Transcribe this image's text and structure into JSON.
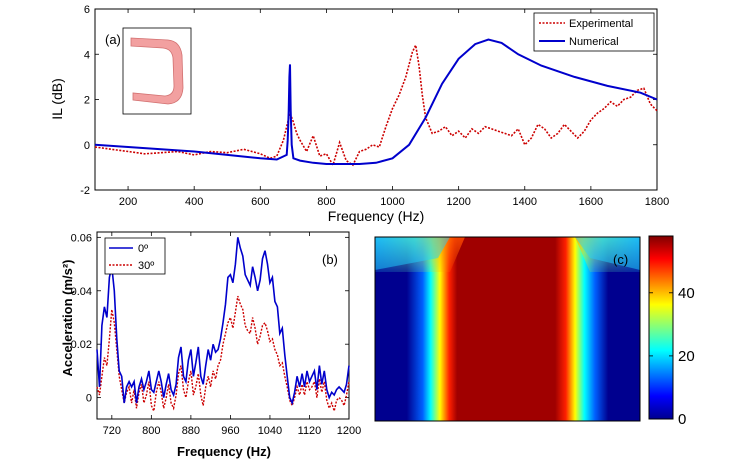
{
  "colors": {
    "experimental": "#cc0000",
    "numerical": "#0000cc",
    "deg0": "#0000cc",
    "deg30": "#cc0000"
  },
  "chart_data": [
    {
      "type": "line",
      "panel_label": "(a)",
      "xlabel": "Frequency (Hz)",
      "ylabel": "IL (dB)",
      "xlim": [
        100,
        1800
      ],
      "ylim": [
        -2,
        6
      ],
      "xticks": [
        "200",
        "400",
        "600",
        "800",
        "1000",
        "1200",
        "1400",
        "1600",
        "1800"
      ],
      "yticks": [
        "-2",
        "0",
        "2",
        "4",
        "6"
      ],
      "legend_position": "top-right",
      "series": [
        {
          "name": "Experimental",
          "style": "dotted",
          "x": [
            100,
            150,
            200,
            250,
            300,
            350,
            400,
            450,
            500,
            550,
            600,
            630,
            650,
            670,
            680,
            690,
            700,
            710,
            720,
            740,
            760,
            780,
            800,
            820,
            840,
            860,
            880,
            900,
            920,
            940,
            960,
            980,
            1000,
            1020,
            1040,
            1060,
            1070,
            1080,
            1090,
            1100,
            1120,
            1140,
            1160,
            1180,
            1200,
            1220,
            1240,
            1260,
            1280,
            1300,
            1320,
            1340,
            1360,
            1380,
            1400,
            1420,
            1440,
            1460,
            1480,
            1500,
            1520,
            1540,
            1560,
            1580,
            1600,
            1620,
            1640,
            1660,
            1680,
            1700,
            1720,
            1740,
            1760,
            1780,
            1800
          ],
          "y": [
            -0.1,
            -0.2,
            -0.3,
            -0.4,
            -0.35,
            -0.3,
            -0.45,
            -0.3,
            -0.35,
            -0.2,
            -0.4,
            -0.6,
            -0.5,
            0.2,
            0.8,
            1.4,
            1.0,
            0.5,
            0.2,
            -0.3,
            0.4,
            -0.5,
            -0.4,
            -0.9,
            0.1,
            -0.7,
            -0.9,
            -0.3,
            -0.2,
            0.0,
            -0.1,
            0.8,
            1.6,
            2.2,
            3.0,
            4.1,
            4.4,
            3.5,
            2.2,
            1.2,
            0.5,
            0.6,
            0.8,
            0.4,
            0.6,
            0.3,
            0.7,
            0.5,
            0.8,
            0.7,
            0.6,
            0.5,
            0.4,
            0.7,
            0.0,
            0.3,
            0.9,
            0.7,
            0.3,
            0.5,
            0.9,
            0.6,
            0.3,
            0.6,
            1.1,
            1.4,
            1.6,
            1.9,
            1.7,
            2.0,
            2.1,
            2.4,
            2.5,
            1.8,
            1.5
          ]
        },
        {
          "name": "Numerical",
          "style": "solid",
          "x": [
            100,
            200,
            300,
            400,
            500,
            600,
            650,
            680,
            683,
            686,
            688,
            690,
            692,
            695,
            700,
            720,
            760,
            800,
            850,
            900,
            950,
            1000,
            1050,
            1100,
            1150,
            1200,
            1250,
            1290,
            1330,
            1380,
            1450,
            1550,
            1650,
            1750,
            1800
          ],
          "y": [
            0.0,
            -0.1,
            -0.2,
            -0.3,
            -0.45,
            -0.6,
            -0.65,
            -0.45,
            0.2,
            1.5,
            3.0,
            3.55,
            1.5,
            0.0,
            -0.6,
            -0.7,
            -0.8,
            -0.85,
            -0.85,
            -0.85,
            -0.8,
            -0.6,
            0.0,
            1.2,
            2.7,
            3.8,
            4.45,
            4.65,
            4.5,
            4.0,
            3.5,
            3.0,
            2.6,
            2.3,
            2.0
          ]
        }
      ]
    },
    {
      "type": "line",
      "panel_label": "(b)",
      "xlabel": "Frequency (Hz)",
      "ylabel": "Acceleration (m/s²)",
      "xlim": [
        690,
        1200
      ],
      "ylim": [
        -0.008,
        0.062
      ],
      "xticks": [
        "720",
        "800",
        "880",
        "960",
        "1040",
        "1120",
        "1200"
      ],
      "yticks": [
        "0",
        "0.02",
        "0.04",
        "0.06"
      ],
      "legend_position": "top-left",
      "series": [
        {
          "name": "0º",
          "style": "solid",
          "x": [
            690,
            695,
            700,
            705,
            710,
            715,
            720,
            725,
            730,
            735,
            740,
            745,
            750,
            755,
            760,
            765,
            770,
            775,
            780,
            785,
            790,
            795,
            800,
            805,
            810,
            815,
            820,
            825,
            830,
            835,
            840,
            845,
            850,
            855,
            860,
            865,
            870,
            875,
            880,
            885,
            890,
            895,
            900,
            905,
            910,
            915,
            920,
            925,
            930,
            935,
            940,
            945,
            950,
            955,
            960,
            965,
            970,
            975,
            980,
            985,
            990,
            995,
            1000,
            1005,
            1010,
            1015,
            1020,
            1025,
            1030,
            1035,
            1040,
            1045,
            1050,
            1055,
            1060,
            1065,
            1070,
            1075,
            1080,
            1085,
            1090,
            1095,
            1100,
            1105,
            1110,
            1115,
            1120,
            1125,
            1130,
            1135,
            1140,
            1145,
            1150,
            1155,
            1160,
            1165,
            1170,
            1175,
            1180,
            1185,
            1190,
            1195,
            1200
          ],
          "y": [
            0.018,
            0.004,
            0.027,
            0.034,
            0.03,
            0.045,
            0.049,
            0.04,
            0.022,
            0.01,
            0.008,
            -0.002,
            0.004,
            0.006,
            0.004,
            0.006,
            -0.002,
            0.004,
            0.007,
            0.003,
            0.006,
            0.01,
            0.003,
            0.002,
            0.006,
            0.01,
            0.006,
            0.0,
            0.005,
            0.009,
            0.003,
            0.001,
            0.005,
            0.015,
            0.019,
            0.008,
            0.006,
            0.014,
            0.018,
            0.008,
            0.013,
            0.019,
            0.008,
            0.005,
            0.012,
            0.018,
            0.014,
            0.02,
            0.017,
            0.018,
            0.022,
            0.028,
            0.035,
            0.045,
            0.046,
            0.043,
            0.05,
            0.06,
            0.056,
            0.053,
            0.046,
            0.044,
            0.042,
            0.049,
            0.045,
            0.04,
            0.044,
            0.052,
            0.055,
            0.05,
            0.043,
            0.045,
            0.036,
            0.034,
            0.024,
            0.026,
            0.016,
            0.008,
            0.0,
            -0.002,
            0.002,
            0.008,
            0.004,
            0.009,
            0.004,
            0.01,
            0.006,
            0.008,
            0.01,
            0.003,
            0.012,
            0.005,
            0.01,
            0.003,
            0.0,
            0.002,
            0.001,
            0.003,
            0.004,
            0.003,
            0.002,
            0.005,
            0.012
          ]
        },
        {
          "name": "30º",
          "style": "dotted",
          "x": [
            690,
            695,
            700,
            705,
            710,
            715,
            720,
            725,
            730,
            735,
            740,
            745,
            750,
            755,
            760,
            765,
            770,
            775,
            780,
            785,
            790,
            795,
            800,
            805,
            810,
            815,
            820,
            825,
            830,
            835,
            840,
            845,
            850,
            855,
            860,
            865,
            870,
            875,
            880,
            885,
            890,
            895,
            900,
            905,
            910,
            915,
            920,
            925,
            930,
            935,
            940,
            945,
            950,
            955,
            960,
            965,
            970,
            975,
            980,
            985,
            990,
            995,
            1000,
            1005,
            1010,
            1015,
            1020,
            1025,
            1030,
            1035,
            1040,
            1045,
            1050,
            1055,
            1060,
            1065,
            1070,
            1075,
            1080,
            1085,
            1090,
            1095,
            1100,
            1105,
            1110,
            1115,
            1120,
            1125,
            1130,
            1135,
            1140,
            1145,
            1150,
            1155,
            1160,
            1165,
            1170,
            1175,
            1180,
            1185,
            1190,
            1195,
            1200
          ],
          "y": [
            0.004,
            0.001,
            0.008,
            0.015,
            0.012,
            0.022,
            0.033,
            0.028,
            0.018,
            0.008,
            0.003,
            -0.002,
            0.002,
            0.004,
            -0.002,
            0.003,
            -0.004,
            0.002,
            0.005,
            -0.002,
            0.001,
            0.006,
            -0.003,
            -0.005,
            0.002,
            0.006,
            0.002,
            -0.004,
            0.0,
            0.005,
            -0.002,
            -0.004,
            0.001,
            0.009,
            0.012,
            0.003,
            0.0,
            0.006,
            0.01,
            0.001,
            0.004,
            0.009,
            0.001,
            -0.003,
            0.004,
            0.008,
            0.004,
            0.01,
            0.007,
            0.012,
            0.014,
            0.02,
            0.024,
            0.028,
            0.03,
            0.026,
            0.032,
            0.038,
            0.035,
            0.033,
            0.027,
            0.025,
            0.024,
            0.03,
            0.026,
            0.02,
            0.023,
            0.027,
            0.028,
            0.025,
            0.021,
            0.022,
            0.018,
            0.016,
            0.012,
            0.013,
            0.008,
            0.004,
            -0.001,
            -0.003,
            0.0,
            0.004,
            0.001,
            0.005,
            0.001,
            0.006,
            0.003,
            0.004,
            0.006,
            0.0,
            0.007,
            0.002,
            0.006,
            -0.001,
            -0.004,
            -0.002,
            -0.005,
            -0.001,
            0.0,
            -0.001,
            -0.003,
            0.001,
            0.006
          ]
        }
      ]
    },
    {
      "type": "heatmap",
      "panel_label": "(c)",
      "colorbar_ticks": [
        "0",
        "20",
        "40"
      ],
      "colorbar_range": [
        0,
        58
      ]
    }
  ]
}
